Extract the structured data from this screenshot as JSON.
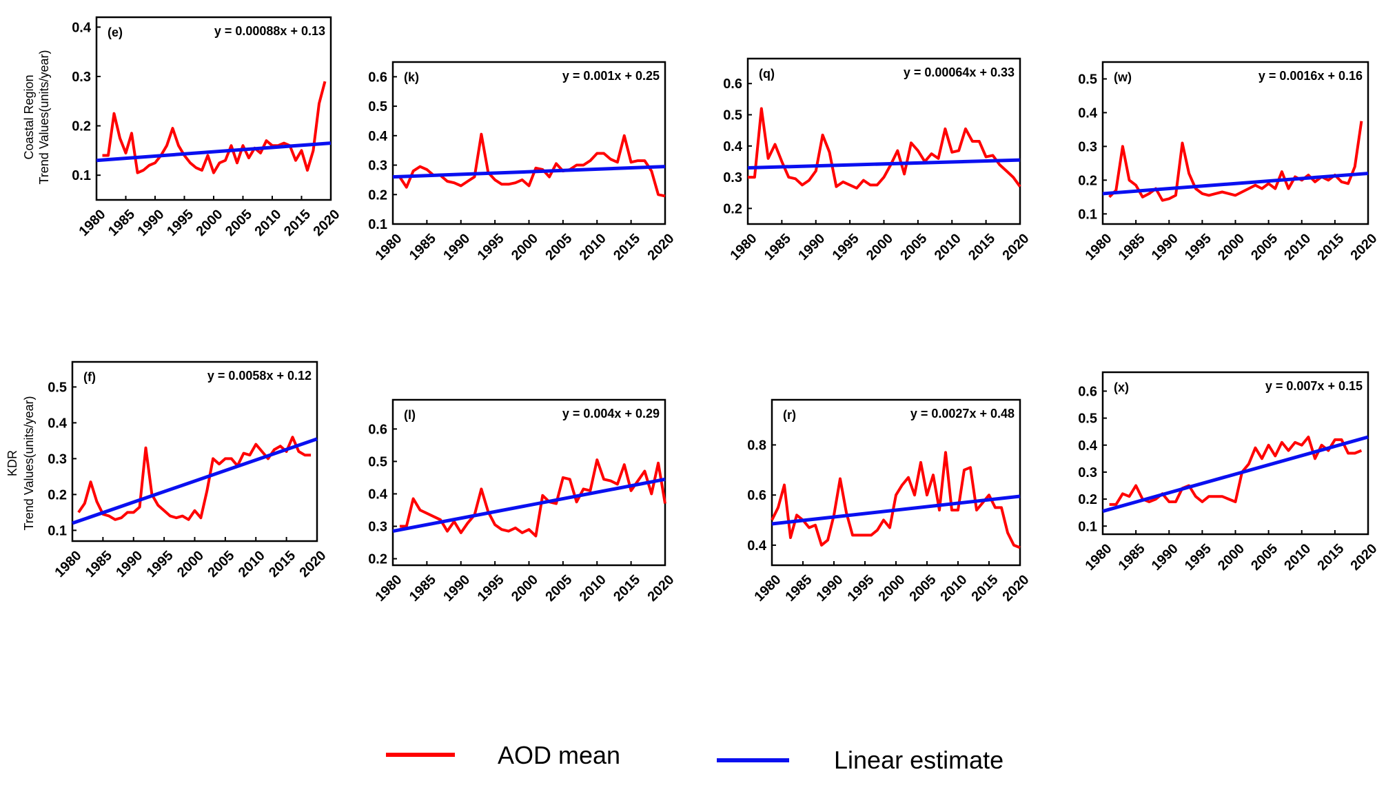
{
  "legend": {
    "aod_label": "AOD mean",
    "linear_label": "Linear estimate",
    "aod_color": "#ff0000",
    "linear_color": "#0a10f0"
  },
  "rows": [
    {
      "region": "Coastal Region",
      "axis_label": "Trend Values(units/year)"
    },
    {
      "region": "KDR",
      "axis_label": "Trend Values(units/year)"
    }
  ],
  "chart_data": [
    {
      "type": "line",
      "panel": "(e)",
      "equation": "y = 0.00088x + 0.13",
      "x_ticks": [
        1980,
        1985,
        1990,
        1995,
        2000,
        2005,
        2010,
        2015,
        2020
      ],
      "xlim": [
        1980,
        2020
      ],
      "ylim": [
        0.05,
        0.42
      ],
      "y_ticks": [
        0.1,
        0.2,
        0.3,
        0.4
      ],
      "aod_mean": {
        "x": [
          1981,
          1982,
          1983,
          1984,
          1985,
          1986,
          1987,
          1988,
          1989,
          1990,
          1991,
          1992,
          1993,
          1994,
          1995,
          1996,
          1997,
          1998,
          1999,
          2000,
          2001,
          2002,
          2003,
          2004,
          2005,
          2006,
          2007,
          2008,
          2009,
          2010,
          2011,
          2012,
          2013,
          2014,
          2015,
          2016,
          2017,
          2018,
          2019
        ],
        "y": [
          0.14,
          0.14,
          0.225,
          0.175,
          0.145,
          0.185,
          0.105,
          0.11,
          0.12,
          0.125,
          0.14,
          0.16,
          0.195,
          0.16,
          0.14,
          0.125,
          0.115,
          0.11,
          0.14,
          0.105,
          0.125,
          0.13,
          0.16,
          0.125,
          0.16,
          0.135,
          0.155,
          0.145,
          0.17,
          0.16,
          0.16,
          0.165,
          0.16,
          0.13,
          0.15,
          0.11,
          0.15,
          0.245,
          0.29
        ]
      },
      "linear_estimate": {
        "x": [
          1980,
          2020
        ],
        "y": [
          0.13,
          0.165
        ]
      }
    },
    {
      "type": "line",
      "panel": "(k)",
      "equation": "y = 0.001x + 0.25",
      "x_ticks": [
        1980,
        1985,
        1990,
        1995,
        2000,
        2005,
        2010,
        2015,
        2020
      ],
      "xlim": [
        1980,
        2020
      ],
      "ylim": [
        0.1,
        0.65
      ],
      "y_ticks": [
        0.1,
        0.2,
        0.3,
        0.4,
        0.5,
        0.6
      ],
      "aod_mean": {
        "x": [
          1980,
          1981,
          1982,
          1983,
          1984,
          1985,
          1986,
          1987,
          1988,
          1989,
          1990,
          1991,
          1992,
          1993,
          1994,
          1995,
          1996,
          1997,
          1998,
          1999,
          2000,
          2001,
          2002,
          2003,
          2004,
          2005,
          2006,
          2007,
          2008,
          2009,
          2010,
          2011,
          2012,
          2013,
          2014,
          2015,
          2016,
          2017,
          2018,
          2019,
          2020
        ],
        "y": [
          0.26,
          0.26,
          0.225,
          0.28,
          0.295,
          0.285,
          0.265,
          0.265,
          0.245,
          0.24,
          0.23,
          0.245,
          0.26,
          0.405,
          0.275,
          0.25,
          0.235,
          0.235,
          0.24,
          0.25,
          0.23,
          0.29,
          0.285,
          0.26,
          0.305,
          0.28,
          0.285,
          0.3,
          0.3,
          0.315,
          0.34,
          0.34,
          0.32,
          0.31,
          0.4,
          0.31,
          0.315,
          0.315,
          0.28,
          0.2,
          0.195
        ]
      },
      "linear_estimate": {
        "x": [
          1980,
          2020
        ],
        "y": [
          0.26,
          0.295
        ]
      }
    },
    {
      "type": "line",
      "panel": "(q)",
      "equation": "y = 0.00064x + 0.33",
      "x_ticks": [
        1980,
        1985,
        1990,
        1995,
        2000,
        2005,
        2010,
        2015,
        2020
      ],
      "xlim": [
        1980,
        2020
      ],
      "ylim": [
        0.15,
        0.68
      ],
      "y_ticks": [
        0.2,
        0.3,
        0.4,
        0.5,
        0.6
      ],
      "aod_mean": {
        "x": [
          1980,
          1981,
          1982,
          1983,
          1984,
          1985,
          1986,
          1987,
          1988,
          1989,
          1990,
          1991,
          1992,
          1993,
          1994,
          1995,
          1996,
          1997,
          1998,
          1999,
          2000,
          2001,
          2002,
          2003,
          2004,
          2005,
          2006,
          2007,
          2008,
          2009,
          2010,
          2011,
          2012,
          2013,
          2014,
          2015,
          2016,
          2017,
          2018,
          2019,
          2020
        ],
        "y": [
          0.3,
          0.3,
          0.52,
          0.36,
          0.405,
          0.35,
          0.3,
          0.295,
          0.275,
          0.29,
          0.32,
          0.435,
          0.38,
          0.27,
          0.285,
          0.275,
          0.265,
          0.29,
          0.275,
          0.275,
          0.3,
          0.34,
          0.385,
          0.31,
          0.41,
          0.385,
          0.35,
          0.375,
          0.36,
          0.455,
          0.38,
          0.385,
          0.455,
          0.415,
          0.415,
          0.365,
          0.37,
          0.34,
          0.32,
          0.3,
          0.27
        ]
      },
      "linear_estimate": {
        "x": [
          1980,
          2020
        ],
        "y": [
          0.33,
          0.355
        ]
      }
    },
    {
      "type": "line",
      "panel": "(w)",
      "equation": "y = 0.0016x + 0.16",
      "x_ticks": [
        1980,
        1985,
        1990,
        1995,
        2000,
        2005,
        2010,
        2015,
        2020
      ],
      "xlim": [
        1980,
        2020
      ],
      "ylim": [
        0.07,
        0.55
      ],
      "y_ticks": [
        0.1,
        0.2,
        0.3,
        0.4,
        0.5
      ],
      "aod_mean": {
        "x": [
          1981,
          1982,
          1983,
          1984,
          1985,
          1986,
          1987,
          1988,
          1989,
          1990,
          1991,
          1992,
          1993,
          1994,
          1995,
          1996,
          1997,
          1998,
          1999,
          2000,
          2001,
          2002,
          2003,
          2004,
          2005,
          2006,
          2007,
          2008,
          2009,
          2010,
          2011,
          2012,
          2013,
          2014,
          2015,
          2016,
          2017,
          2018,
          2019
        ],
        "y": [
          0.15,
          0.17,
          0.3,
          0.2,
          0.185,
          0.15,
          0.16,
          0.175,
          0.14,
          0.145,
          0.155,
          0.31,
          0.22,
          0.175,
          0.16,
          0.155,
          0.16,
          0.165,
          0.16,
          0.155,
          0.165,
          0.175,
          0.185,
          0.175,
          0.19,
          0.175,
          0.225,
          0.175,
          0.21,
          0.2,
          0.215,
          0.195,
          0.21,
          0.2,
          0.215,
          0.195,
          0.19,
          0.24,
          0.375
        ]
      },
      "linear_estimate": {
        "x": [
          1980,
          2020
        ],
        "y": [
          0.16,
          0.22
        ]
      }
    },
    {
      "type": "line",
      "panel": "(f)",
      "equation": "y = 0.0058x + 0.12",
      "x_ticks": [
        1980,
        1985,
        1990,
        1995,
        2000,
        2005,
        2010,
        2015,
        2020
      ],
      "xlim": [
        1980,
        2020
      ],
      "ylim": [
        0.07,
        0.57
      ],
      "y_ticks": [
        0.1,
        0.2,
        0.3,
        0.4,
        0.5
      ],
      "aod_mean": {
        "x": [
          1981,
          1982,
          1983,
          1984,
          1985,
          1986,
          1987,
          1988,
          1989,
          1990,
          1991,
          1992,
          1993,
          1994,
          1995,
          1996,
          1997,
          1998,
          1999,
          2000,
          2001,
          2002,
          2003,
          2004,
          2005,
          2006,
          2007,
          2008,
          2009,
          2010,
          2011,
          2012,
          2013,
          2014,
          2015,
          2016,
          2017,
          2018,
          2019
        ],
        "y": [
          0.15,
          0.175,
          0.235,
          0.18,
          0.145,
          0.14,
          0.13,
          0.135,
          0.15,
          0.15,
          0.165,
          0.33,
          0.2,
          0.17,
          0.155,
          0.14,
          0.135,
          0.14,
          0.13,
          0.155,
          0.135,
          0.21,
          0.3,
          0.285,
          0.3,
          0.3,
          0.28,
          0.315,
          0.31,
          0.34,
          0.32,
          0.3,
          0.325,
          0.335,
          0.32,
          0.36,
          0.32,
          0.31,
          0.31
        ]
      },
      "linear_estimate": {
        "x": [
          1980,
          2020
        ],
        "y": [
          0.12,
          0.355
        ]
      }
    },
    {
      "type": "line",
      "panel": "(l)",
      "equation": "y = 0.004x + 0.29",
      "x_ticks": [
        1980,
        1985,
        1990,
        1995,
        2000,
        2005,
        2010,
        2015,
        2020
      ],
      "xlim": [
        1980,
        2020
      ],
      "ylim": [
        0.18,
        0.69
      ],
      "y_ticks": [
        0.2,
        0.3,
        0.4,
        0.5,
        0.6
      ],
      "aod_mean": {
        "x": [
          1981,
          1982,
          1983,
          1984,
          1985,
          1986,
          1987,
          1988,
          1989,
          1990,
          1991,
          1992,
          1993,
          1994,
          1995,
          1996,
          1997,
          1998,
          1999,
          2000,
          2001,
          2002,
          2003,
          2004,
          2005,
          2006,
          2007,
          2008,
          2009,
          2010,
          2011,
          2012,
          2013,
          2014,
          2015,
          2016,
          2017,
          2018,
          2019,
          2020
        ],
        "y": [
          0.3,
          0.3,
          0.385,
          0.35,
          0.34,
          0.33,
          0.32,
          0.285,
          0.315,
          0.28,
          0.31,
          0.335,
          0.415,
          0.345,
          0.305,
          0.29,
          0.285,
          0.295,
          0.28,
          0.29,
          0.27,
          0.395,
          0.375,
          0.37,
          0.45,
          0.445,
          0.375,
          0.415,
          0.41,
          0.505,
          0.445,
          0.44,
          0.43,
          0.49,
          0.41,
          0.44,
          0.47,
          0.4,
          0.495,
          0.37
        ]
      },
      "linear_estimate": {
        "x": [
          1980,
          2020
        ],
        "y": [
          0.285,
          0.445
        ]
      }
    },
    {
      "type": "line",
      "panel": "(r)",
      "equation": "y = 0.0027x + 0.48",
      "x_ticks": [
        1980,
        1985,
        1990,
        1995,
        2000,
        2005,
        2010,
        2015,
        2020
      ],
      "xlim": [
        1980,
        2020
      ],
      "ylim": [
        0.32,
        0.98
      ],
      "y_ticks": [
        0.4,
        0.6,
        0.8
      ],
      "aod_mean": {
        "x": [
          1980,
          1981,
          1982,
          1983,
          1984,
          1985,
          1986,
          1987,
          1988,
          1989,
          1990,
          1991,
          1992,
          1993,
          1994,
          1995,
          1996,
          1997,
          1998,
          1999,
          2000,
          2001,
          2002,
          2003,
          2004,
          2005,
          2006,
          2007,
          2008,
          2009,
          2010,
          2011,
          2012,
          2013,
          2014,
          2015,
          2016,
          2017,
          2018,
          2019,
          2020
        ],
        "y": [
          0.5,
          0.55,
          0.64,
          0.43,
          0.52,
          0.5,
          0.47,
          0.48,
          0.4,
          0.42,
          0.52,
          0.665,
          0.53,
          0.44,
          0.44,
          0.44,
          0.44,
          0.46,
          0.5,
          0.47,
          0.6,
          0.64,
          0.67,
          0.6,
          0.73,
          0.6,
          0.68,
          0.54,
          0.77,
          0.54,
          0.54,
          0.7,
          0.71,
          0.54,
          0.57,
          0.6,
          0.55,
          0.55,
          0.45,
          0.4,
          0.39
        ]
      },
      "linear_estimate": {
        "x": [
          1980,
          2020
        ],
        "y": [
          0.485,
          0.595
        ]
      }
    },
    {
      "type": "line",
      "panel": "(x)",
      "equation": "y = 0.007x + 0.15",
      "x_ticks": [
        1980,
        1985,
        1990,
        1995,
        2000,
        2005,
        2010,
        2015,
        2020
      ],
      "xlim": [
        1980,
        2020
      ],
      "ylim": [
        0.07,
        0.67
      ],
      "y_ticks": [
        0.1,
        0.2,
        0.3,
        0.4,
        0.5,
        0.6
      ],
      "aod_mean": {
        "x": [
          1981,
          1982,
          1983,
          1984,
          1985,
          1986,
          1987,
          1988,
          1989,
          1990,
          1991,
          1992,
          1993,
          1994,
          1995,
          1996,
          1997,
          1998,
          1999,
          2000,
          2001,
          2002,
          2003,
          2004,
          2005,
          2006,
          2007,
          2008,
          2009,
          2010,
          2011,
          2012,
          2013,
          2014,
          2015,
          2016,
          2017,
          2018,
          2019
        ],
        "y": [
          0.18,
          0.18,
          0.22,
          0.21,
          0.25,
          0.2,
          0.19,
          0.2,
          0.22,
          0.19,
          0.19,
          0.24,
          0.25,
          0.21,
          0.19,
          0.21,
          0.21,
          0.21,
          0.2,
          0.19,
          0.3,
          0.33,
          0.39,
          0.35,
          0.4,
          0.36,
          0.41,
          0.38,
          0.41,
          0.4,
          0.43,
          0.35,
          0.4,
          0.38,
          0.42,
          0.42,
          0.37,
          0.37,
          0.38
        ]
      },
      "linear_estimate": {
        "x": [
          1980,
          2020
        ],
        "y": [
          0.155,
          0.43
        ]
      }
    }
  ]
}
